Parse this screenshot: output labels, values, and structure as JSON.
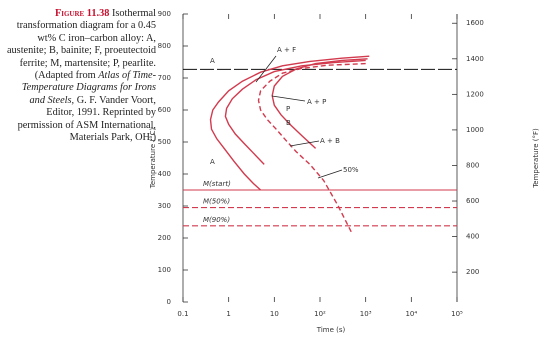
{
  "caption": {
    "label": "Figure 11.38",
    "text": "Isothermal transformation diagram for a 0.45 wt% C iron–carbon alloy: A, austenite; B, bainite; F, proeutectoid ferrite; M, martensite; P, pearlite. (Adapted from",
    "italic": "Atlas of Time-Temperature Diagrams for Irons and Steels,",
    "rest": "G. F. Vander Voort, Editor, 1991. Reprinted by permission of ASM International, Materials Park, OH.)"
  },
  "chart_data": {
    "type": "line",
    "xlabel": "Time (s)",
    "ylabel": "Temperature (°C)",
    "y2label": "Temperature (°F)",
    "xscale": "log",
    "xlim": [
      0.1,
      100000
    ],
    "xticks": [
      0.1,
      1,
      10,
      {
        "value": 100,
        "label": "10²"
      },
      {
        "value": 1000,
        "label": "10³"
      },
      {
        "value": 10000,
        "label": "10⁴"
      },
      {
        "value": 100000,
        "label": "10⁵"
      }
    ],
    "ylim": [
      0,
      900
    ],
    "yticks": [
      0,
      100,
      200,
      300,
      400,
      500,
      600,
      700,
      800,
      900
    ],
    "y2lim": [
      32,
      1652
    ],
    "y2ticks": [
      200,
      400,
      600,
      800,
      1000,
      1200,
      1400,
      1600
    ],
    "eutectoid": 727,
    "reference_lines": [
      {
        "value": 350,
        "label": "M(start)"
      },
      {
        "value": 295,
        "label": "M(50%)"
      },
      {
        "value": 238,
        "label": "M(90%)"
      }
    ],
    "series": [
      {
        "color": "#d23a4e",
        "dashed": false,
        "x": [
          1200,
          300,
          60,
          15,
          5,
          2,
          1,
          0.6,
          0.45,
          0.4,
          0.42,
          0.55,
          0.8,
          1.3,
          2.2,
          3.5,
          5
        ],
        "values": [
          768,
          762,
          752,
          738,
          718,
          690,
          660,
          625,
          600,
          570,
          540,
          510,
          480,
          440,
          400,
          370,
          350
        ]
      },
      {
        "color": "#d23a4e",
        "dashed": false,
        "x": [
          1000,
          200,
          40,
          10,
          4,
          2,
          1.2,
          0.9,
          0.85,
          1,
          1.4,
          2.2,
          3.5,
          6
        ],
        "values": [
          755,
          748,
          738,
          720,
          695,
          665,
          635,
          605,
          580,
          555,
          525,
          495,
          465,
          430
        ]
      },
      {
        "color": "#d23a4e",
        "dashed": true,
        "x": [
          1000,
          150,
          40,
          15,
          8,
          5,
          4.5,
          5,
          7,
          11,
          18,
          30,
          60,
          120,
          250,
          500
        ],
        "values": [
          745,
          740,
          730,
          715,
          690,
          660,
          630,
          600,
          570,
          540,
          505,
          470,
          430,
          380,
          300,
          215
        ]
      },
      {
        "color": "#d23a4e",
        "dashed": false,
        "x": [
          1100,
          300,
          80,
          30,
          15,
          10,
          9,
          10,
          14,
          22,
          40,
          80
        ],
        "values": [
          760,
          755,
          745,
          728,
          705,
          675,
          645,
          615,
          585,
          555,
          520,
          480
        ]
      }
    ],
    "annotations": [
      "A",
      "A + F",
      "A + P",
      "P",
      "B",
      "A + B",
      "50%",
      "A"
    ]
  }
}
